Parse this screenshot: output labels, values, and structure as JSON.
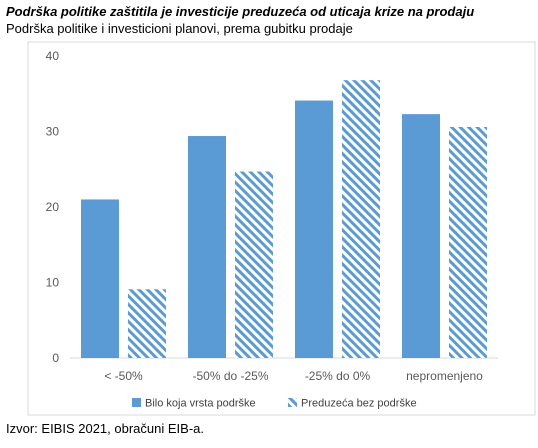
{
  "title": "Podrška politike zaštitila je investicije preduzeća od uticaja krize na prodaju",
  "subtitle": "Podrška politike i investicioni planovi, prema gubitku prodaje",
  "source": "Izvor: EIBIS 2021, obračuni EIB-a.",
  "colors": {
    "solid": "#5b9bd5",
    "hatch": "#5b9bd5"
  },
  "chart_data": {
    "type": "bar",
    "categories": [
      "< -50%",
      "-50% do -25%",
      "-25% do 0%",
      "nepromenjeno"
    ],
    "series": [
      {
        "name": "Bilo koja vrsta podrške",
        "values": [
          21.0,
          29.4,
          34.1,
          32.3
        ],
        "style": "solid"
      },
      {
        "name": "Preduzeća bez podrške",
        "values": [
          9.1,
          24.7,
          36.8,
          30.6
        ],
        "style": "hatched"
      }
    ],
    "ylim": [
      0,
      40
    ],
    "yticks": [
      0,
      10,
      20,
      30,
      40
    ],
    "grid": false,
    "legend": "bottom"
  }
}
